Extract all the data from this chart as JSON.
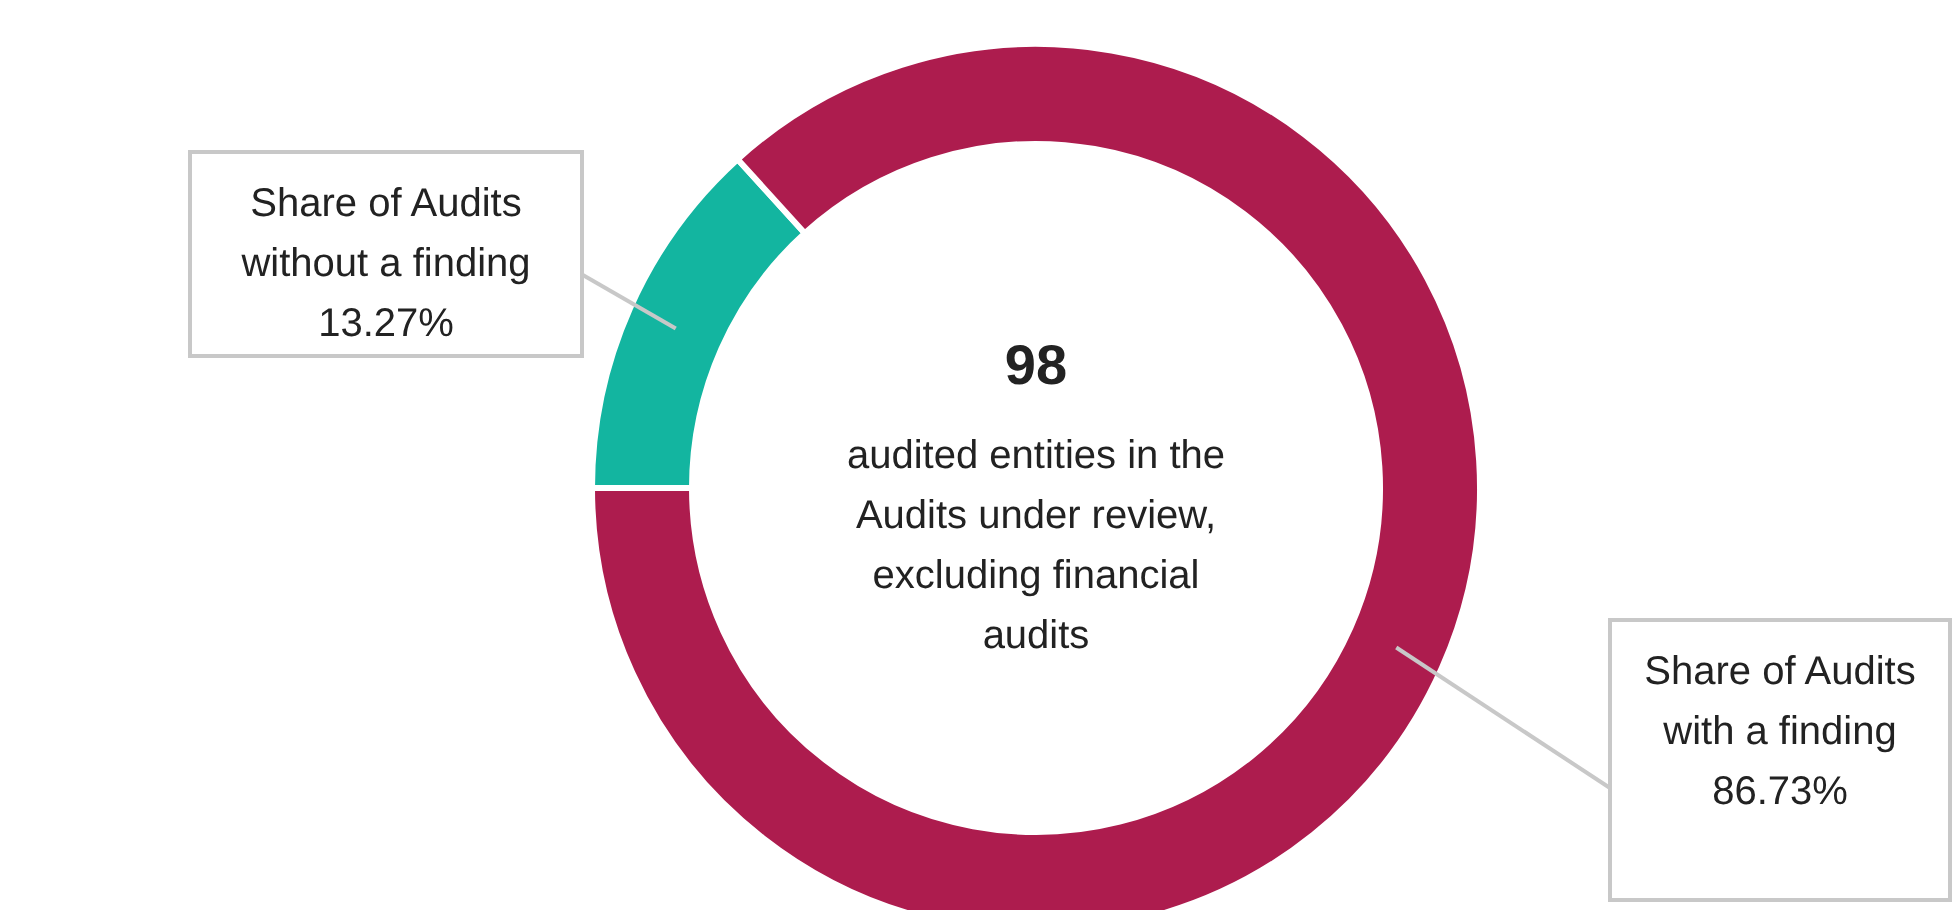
{
  "chart_data": {
    "type": "donut",
    "categories": [
      "Share of Audits without a finding",
      "Share of Audits with a finding"
    ],
    "values": [
      13.27,
      86.73
    ],
    "colors": [
      "#13b5a0",
      "#ad1c4e"
    ],
    "value_labels": [
      "13.27%",
      "86.73%"
    ],
    "annotations": [
      "98",
      "audited entities in the Audits under review, excluding financial audits"
    ]
  }
}
